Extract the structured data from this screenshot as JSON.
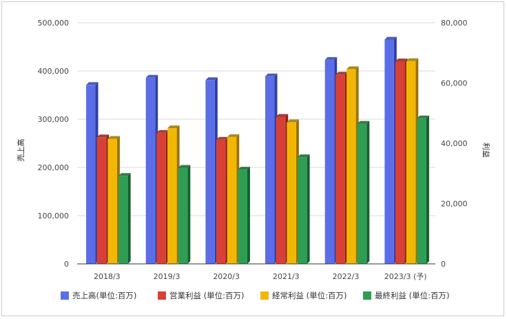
{
  "chart_data": {
    "type": "bar",
    "title": "",
    "categories": [
      "2018/3",
      "2019/3",
      "2020/3",
      "2021/3",
      "2022/3",
      "2023/3 (予)"
    ],
    "y_left": {
      "label": "売上高",
      "range": [
        0,
        500000
      ],
      "ticks": [
        "0",
        "100,000",
        "200,000",
        "300,000",
        "400,000",
        "500,000"
      ]
    },
    "y_right": {
      "label": "利益",
      "range": [
        0,
        80000
      ],
      "ticks": [
        "0",
        "20,000",
        "40,000",
        "60,000",
        "80,000"
      ]
    },
    "grid": true,
    "legend_position": "bottom",
    "series": [
      {
        "name": "売上高(単位:百万)",
        "axis": "left",
        "color": "#5b6ee8",
        "side": "#2f3fa8",
        "values": [
          371000,
          386000,
          381000,
          389000,
          423000,
          465000
        ]
      },
      {
        "name": "営業利益 (単位:百万)",
        "axis": "right",
        "color": "#d94035",
        "side": "#8f1f18",
        "values": [
          42000,
          43500,
          41200,
          48800,
          62800,
          67200
        ]
      },
      {
        "name": "経常利益 (単位:百万)",
        "axis": "right",
        "color": "#f2b705",
        "side": "#9a7300",
        "values": [
          41500,
          45000,
          42100,
          47000,
          64600,
          67300
        ]
      },
      {
        "name": "最終利益 (単位:百万)",
        "axis": "right",
        "color": "#2f9e55",
        "side": "#14602d",
        "values": [
          29200,
          31900,
          31300,
          35400,
          46500,
          48300
        ]
      }
    ]
  }
}
